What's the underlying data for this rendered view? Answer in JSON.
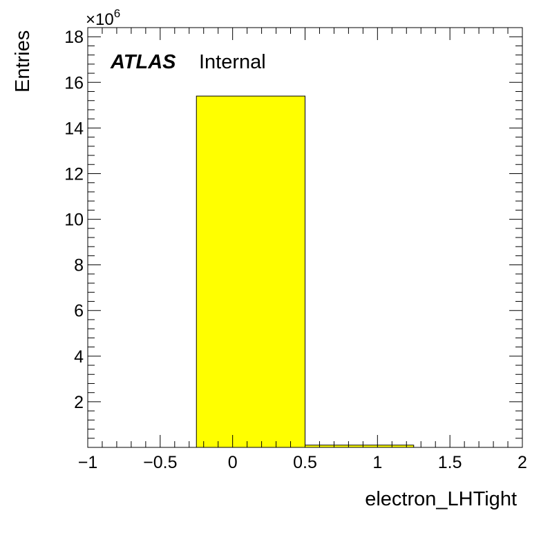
{
  "chart_data": {
    "type": "bar",
    "histogram": true,
    "bin_edges": [
      -0.25,
      0.5,
      1.25
    ],
    "values": [
      15400000,
      100000
    ],
    "xlabel": "electron_LHTight",
    "ylabel": "Entries",
    "xlim": [
      -1,
      2
    ],
    "ylim": [
      0,
      18400000
    ],
    "y_multiplier_label": "×10",
    "y_multiplier_exponent": "6",
    "x_ticks": [
      "−1",
      "−0.5",
      "0",
      "0.5",
      "1",
      "1.5",
      "2"
    ],
    "y_ticks": [
      "2",
      "4",
      "6",
      "8",
      "10",
      "12",
      "14",
      "16",
      "18"
    ],
    "grid": false,
    "fill_color": "#ffff00",
    "edge_color": "#000000"
  },
  "labels": {
    "atlas": "ATLAS",
    "internal": "Internal"
  }
}
